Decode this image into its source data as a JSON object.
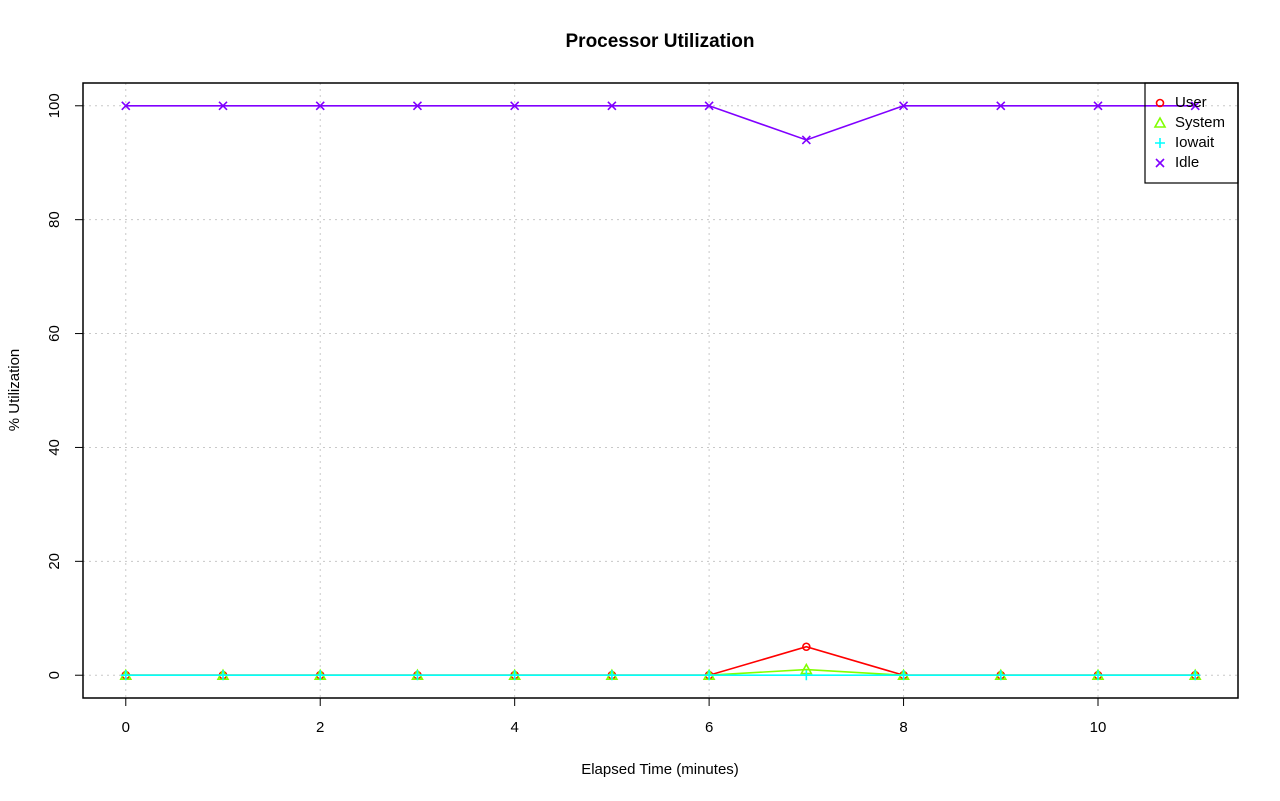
{
  "chart_data": {
    "type": "line",
    "title": "Processor Utilization",
    "x_label": "Elapsed Time (minutes)",
    "y_label": "% Utilization",
    "x": [
      0,
      1,
      2,
      3,
      4,
      5,
      6,
      7,
      8,
      9,
      10,
      11
    ],
    "series": [
      {
        "name": "User",
        "color": "#ff0000",
        "marker": "circle",
        "values": [
          0,
          0,
          0,
          0,
          0,
          0,
          0,
          5,
          0,
          0,
          0,
          0
        ]
      },
      {
        "name": "System",
        "color": "#80ff00",
        "marker": "triangle",
        "values": [
          0,
          0,
          0,
          0,
          0,
          0,
          0,
          1,
          0,
          0,
          0,
          0
        ]
      },
      {
        "name": "Iowait",
        "color": "#00ffff",
        "marker": "plus",
        "values": [
          0,
          0,
          0,
          0,
          0,
          0,
          0,
          0,
          0,
          0,
          0,
          0
        ]
      },
      {
        "name": "Idle",
        "color": "#8000ff",
        "marker": "cross",
        "values": [
          100,
          100,
          100,
          100,
          100,
          100,
          100,
          94,
          100,
          100,
          100,
          100
        ]
      }
    ],
    "xlim": [
      -0.44,
      11.44
    ],
    "ylim": [
      -4,
      104
    ],
    "xticks": [
      0,
      2,
      4,
      6,
      8,
      10
    ],
    "yticks": [
      0,
      20,
      40,
      60,
      80,
      100
    ],
    "grid": true,
    "legend": "topright"
  }
}
